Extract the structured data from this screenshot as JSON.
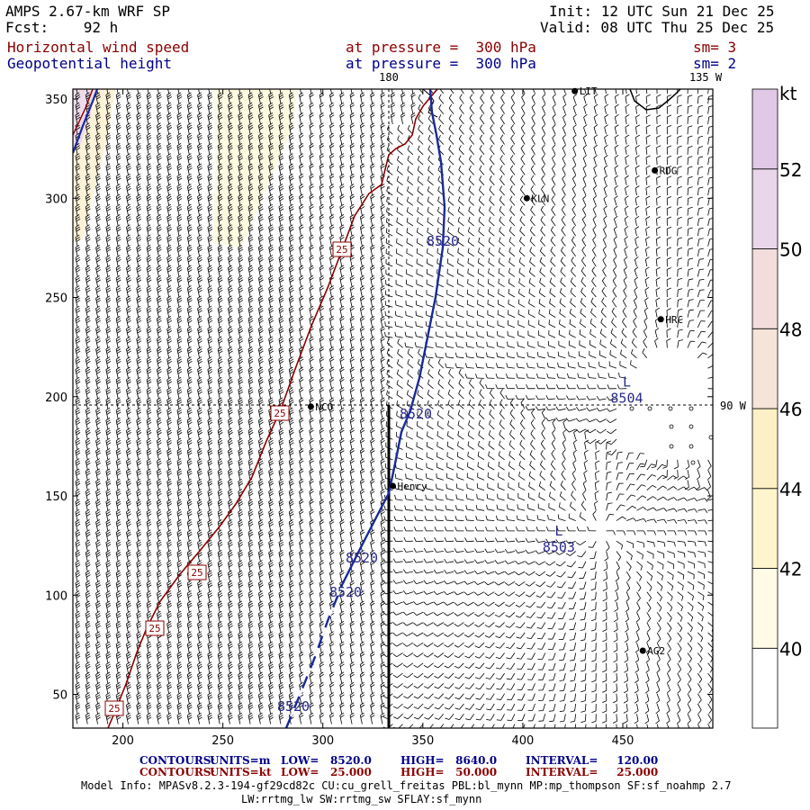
{
  "header": {
    "title": "AMPS 2.67-km WRF SP",
    "forecast": "Fcst:    92 h",
    "init": "Init: 12 UTC Sun 21 Dec 25",
    "valid": "Valid: 08 UTC Thu 25 Dec 25",
    "field1_name": "Horizontal wind speed",
    "field1_level": "at pressure =  300 hPa",
    "field1_smooth": "sm= 3",
    "field2_name": "Geopotential height",
    "field2_level": "at pressure =  300 hPa",
    "field2_smooth": "sm= 2"
  },
  "map_labels": {
    "lon_180": "180",
    "lon_135w": "135 W",
    "lon_90w": "90 W"
  },
  "stations": [
    {
      "name": "LIT",
      "x": 426,
      "y": 354
    },
    {
      "name": "RDG",
      "x": 466,
      "y": 314
    },
    {
      "name": "KLN",
      "x": 402,
      "y": 300
    },
    {
      "name": "HRC",
      "x": 469,
      "y": 239
    },
    {
      "name": "NCO",
      "x": 294,
      "y": 195
    },
    {
      "name": "Henry",
      "x": 335,
      "y": 155
    },
    {
      "name": "AG2",
      "x": 460,
      "y": 72
    }
  ],
  "chart_data": {
    "type": "contour",
    "x_ticks": [
      200,
      250,
      300,
      350,
      400,
      450
    ],
    "y_ticks": [
      50,
      100,
      150,
      200,
      250,
      300,
      350
    ],
    "xlim": [
      175,
      495
    ],
    "ylim": [
      33,
      355
    ],
    "height_contours": [
      {
        "value": 8520,
        "labels": [
          "8520",
          "8520",
          "8520",
          "8520",
          "8520"
        ]
      }
    ],
    "wind_contours": [
      {
        "value": 25,
        "labels": [
          "25",
          "25",
          "25",
          "25",
          "25",
          "25"
        ]
      }
    ],
    "lows": [
      {
        "symbol": "L",
        "value": "8504",
        "x": 452,
        "y": 205
      },
      {
        "symbol": "L",
        "value": "8503",
        "x": 418,
        "y": 130
      }
    ],
    "colorbar": {
      "unit": "kt",
      "levels": [
        "40",
        "42",
        "44",
        "46",
        "48",
        "50",
        "52"
      ],
      "colors": [
        "#ffffff",
        "#fffbe6",
        "#fff5cc",
        "#fdf0c4",
        "#f6e4d8",
        "#f2dcdc",
        "#ead6ea",
        "#e0c8e6"
      ]
    }
  },
  "footer": {
    "line1_label": "CONTOURS:",
    "line1_units": "UNITS=m",
    "line1_low": "LOW=   8520.0",
    "line1_high": "HIGH=   8640.0",
    "line1_interval": "INTERVAL=     120.00",
    "line2_label": "CONTOURS:",
    "line2_units": "UNITS=kt",
    "line2_low": "LOW=   25.000",
    "line2_high": "HIGH=   50.000",
    "line2_interval": "INTERVAL=     25.000",
    "model_info": "Model Info: MPASv8.2.3-194-gf29cd82c CU:cu_grell_freitas PBL:bl_mynn MP:mp_thompson SF:sf_noahmp 2.7",
    "model_info2": "LW:rrtmg_lw SW:rrtmg_sw SFLAY:sf_mynn"
  }
}
